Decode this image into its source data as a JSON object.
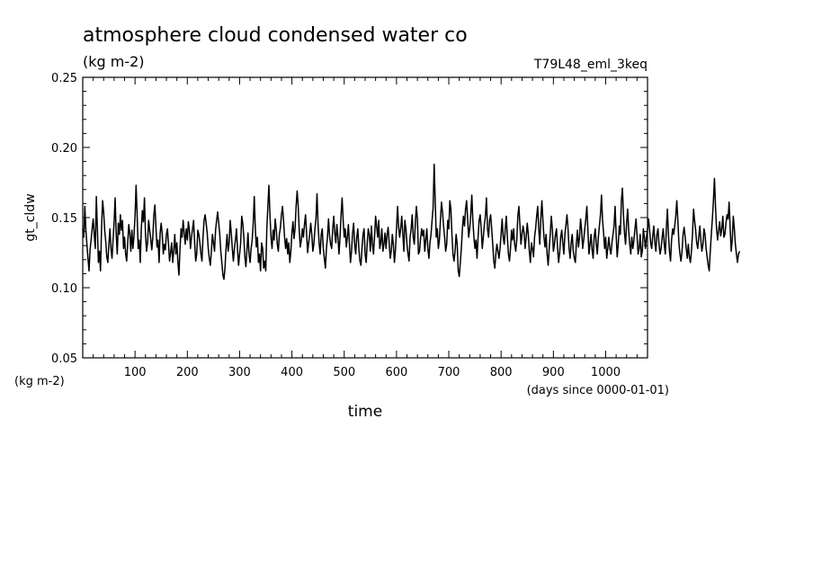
{
  "chart_data": {
    "type": "line",
    "title": "atmosphere cloud condensed water co",
    "subtitle": "(kg m-2)",
    "run_label": "T79L48_eml_3keq",
    "xlabel": "time",
    "x_unit": "(days since 0000-01-01)",
    "ylabel": "gt_cldw",
    "y_unit": "(kg m-2)",
    "xlim": [
      0,
      1080
    ],
    "ylim": [
      0.05,
      0.25
    ],
    "x_ticks": [
      100,
      200,
      300,
      400,
      500,
      600,
      700,
      800,
      900,
      1000
    ],
    "x_tick_labels": [
      "100",
      "200",
      "300",
      "400",
      "500",
      "600",
      "700",
      "800",
      "900",
      "1000"
    ],
    "y_ticks": [
      0.05,
      0.1,
      0.15,
      0.2,
      0.25
    ],
    "y_tick_labels": [
      "0.05",
      "0.10",
      "0.15",
      "0.20",
      "0.25"
    ],
    "grid": false,
    "series": [
      {
        "color": "#000000",
        "x_start": 0,
        "x_step": 2,
        "values": [
          0.142,
          0.136,
          0.158,
          0.141,
          0.131,
          0.121,
          0.112,
          0.127,
          0.134,
          0.142,
          0.149,
          0.138,
          0.128,
          0.165,
          0.142,
          0.118,
          0.126,
          0.112,
          0.143,
          0.162,
          0.154,
          0.141,
          0.133,
          0.122,
          0.118,
          0.131,
          0.142,
          0.128,
          0.121,
          0.134,
          0.147,
          0.164,
          0.138,
          0.124,
          0.146,
          0.138,
          0.152,
          0.141,
          0.148,
          0.128,
          0.136,
          0.124,
          0.119,
          0.132,
          0.145,
          0.139,
          0.126,
          0.141,
          0.128,
          0.137,
          0.151,
          0.173,
          0.152,
          0.128,
          0.134,
          0.118,
          0.142,
          0.155,
          0.147,
          0.164,
          0.138,
          0.126,
          0.132,
          0.148,
          0.141,
          0.135,
          0.127,
          0.136,
          0.152,
          0.159,
          0.143,
          0.129,
          0.134,
          0.118,
          0.139,
          0.146,
          0.138,
          0.124,
          0.131,
          0.127,
          0.138,
          0.142,
          0.131,
          0.119,
          0.125,
          0.132,
          0.118,
          0.126,
          0.138,
          0.124,
          0.132,
          0.118,
          0.109,
          0.128,
          0.142,
          0.136,
          0.148,
          0.139,
          0.131,
          0.142,
          0.134,
          0.147,
          0.141,
          0.128,
          0.136,
          0.142,
          0.148,
          0.132,
          0.119,
          0.124,
          0.141,
          0.138,
          0.132,
          0.124,
          0.119,
          0.136,
          0.148,
          0.152,
          0.146,
          0.139,
          0.128,
          0.121,
          0.116,
          0.126,
          0.138,
          0.132,
          0.126,
          0.141,
          0.148,
          0.154,
          0.146,
          0.138,
          0.126,
          0.118,
          0.109,
          0.106,
          0.114,
          0.128,
          0.138,
          0.126,
          0.132,
          0.148,
          0.139,
          0.128,
          0.119,
          0.128,
          0.134,
          0.142,
          0.127,
          0.116,
          0.124,
          0.132,
          0.151,
          0.146,
          0.136,
          0.122,
          0.115,
          0.127,
          0.139,
          0.124,
          0.118,
          0.128,
          0.134,
          0.146,
          0.165,
          0.142,
          0.129,
          0.136,
          0.118,
          0.124,
          0.112,
          0.132,
          0.128,
          0.114,
          0.119,
          0.112,
          0.142,
          0.158,
          0.173,
          0.152,
          0.136,
          0.128,
          0.141,
          0.134,
          0.149,
          0.142,
          0.131,
          0.126,
          0.138,
          0.143,
          0.152,
          0.158,
          0.148,
          0.136,
          0.128,
          0.135,
          0.124,
          0.132,
          0.118,
          0.126,
          0.139,
          0.147,
          0.135,
          0.142,
          0.158,
          0.169,
          0.158,
          0.141,
          0.129,
          0.134,
          0.142,
          0.136,
          0.145,
          0.152,
          0.139,
          0.125,
          0.132,
          0.138,
          0.146,
          0.138,
          0.126,
          0.131,
          0.142,
          0.149,
          0.167,
          0.145,
          0.132,
          0.124,
          0.138,
          0.142,
          0.128,
          0.121,
          0.114,
          0.128,
          0.136,
          0.149,
          0.137,
          0.131,
          0.128,
          0.142,
          0.151,
          0.139,
          0.132,
          0.145,
          0.136,
          0.124,
          0.136,
          0.152,
          0.164,
          0.148,
          0.136,
          0.142,
          0.129,
          0.136,
          0.145,
          0.131,
          0.118,
          0.126,
          0.139,
          0.146,
          0.131,
          0.124,
          0.136,
          0.142,
          0.128,
          0.119,
          0.116,
          0.128,
          0.138,
          0.142,
          0.124,
          0.118,
          0.132,
          0.142,
          0.138,
          0.126,
          0.144,
          0.131,
          0.124,
          0.136,
          0.151,
          0.144,
          0.136,
          0.148,
          0.128,
          0.132,
          0.142,
          0.126,
          0.131,
          0.139,
          0.128,
          0.138,
          0.143,
          0.132,
          0.121,
          0.126,
          0.138,
          0.131,
          0.118,
          0.127,
          0.142,
          0.158,
          0.144,
          0.136,
          0.142,
          0.151,
          0.139,
          0.126,
          0.148,
          0.142,
          0.131,
          0.124,
          0.119,
          0.136,
          0.142,
          0.152,
          0.136,
          0.131,
          0.146,
          0.158,
          0.149,
          0.124,
          0.126,
          0.135,
          0.142,
          0.137,
          0.141,
          0.126,
          0.134,
          0.142,
          0.128,
          0.121,
          0.132,
          0.138,
          0.148,
          0.157,
          0.188,
          0.162,
          0.136,
          0.142,
          0.128,
          0.134,
          0.148,
          0.161,
          0.154,
          0.144,
          0.136,
          0.126,
          0.131,
          0.148,
          0.142,
          0.162,
          0.156,
          0.138,
          0.124,
          0.119,
          0.126,
          0.138,
          0.131,
          0.112,
          0.108,
          0.118,
          0.128,
          0.142,
          0.151,
          0.144,
          0.156,
          0.162,
          0.149,
          0.136,
          0.142,
          0.152,
          0.166,
          0.148,
          0.136,
          0.128,
          0.134,
          0.121,
          0.136,
          0.148,
          0.152,
          0.142,
          0.128,
          0.136,
          0.145,
          0.151,
          0.164,
          0.142,
          0.136,
          0.148,
          0.152,
          0.142,
          0.131,
          0.119,
          0.114,
          0.124,
          0.131,
          0.126,
          0.121,
          0.128,
          0.138,
          0.149,
          0.136,
          0.131,
          0.142,
          0.151,
          0.136,
          0.124,
          0.119,
          0.128,
          0.141,
          0.134,
          0.142,
          0.131,
          0.126,
          0.134,
          0.151,
          0.158,
          0.145,
          0.131,
          0.138,
          0.144,
          0.139,
          0.128,
          0.136,
          0.146,
          0.138,
          0.126,
          0.118,
          0.132,
          0.128,
          0.122,
          0.136,
          0.142,
          0.151,
          0.158,
          0.142,
          0.131,
          0.149,
          0.162,
          0.148,
          0.136,
          0.129,
          0.138,
          0.124,
          0.116,
          0.128,
          0.138,
          0.151,
          0.142,
          0.126,
          0.131,
          0.138,
          0.142,
          0.128,
          0.118,
          0.125,
          0.136,
          0.141,
          0.132,
          0.124,
          0.138,
          0.145,
          0.152,
          0.142,
          0.128,
          0.121,
          0.132,
          0.138,
          0.126,
          0.121,
          0.118,
          0.132,
          0.141,
          0.129,
          0.136,
          0.149,
          0.141,
          0.128,
          0.134,
          0.142,
          0.149,
          0.158,
          0.141,
          0.124,
          0.131,
          0.138,
          0.127,
          0.121,
          0.136,
          0.142,
          0.131,
          0.124,
          0.136,
          0.144,
          0.152,
          0.166,
          0.148,
          0.139,
          0.128,
          0.136,
          0.121,
          0.128,
          0.136,
          0.128,
          0.124,
          0.132,
          0.138,
          0.144,
          0.158,
          0.138,
          0.122,
          0.131,
          0.144,
          0.138,
          0.162,
          0.171,
          0.152,
          0.139,
          0.131,
          0.146,
          0.156,
          0.141,
          0.131,
          0.124,
          0.136,
          0.128,
          0.134,
          0.142,
          0.149,
          0.137,
          0.124,
          0.128,
          0.138,
          0.122,
          0.126,
          0.142,
          0.136,
          0.128,
          0.136,
          0.142,
          0.149,
          0.141,
          0.132,
          0.128,
          0.137,
          0.144,
          0.132,
          0.126,
          0.138,
          0.142,
          0.131,
          0.124,
          0.128,
          0.136,
          0.142,
          0.131,
          0.124,
          0.142,
          0.156,
          0.138,
          0.126,
          0.119,
          0.134,
          0.142,
          0.138,
          0.144,
          0.151,
          0.162,
          0.148,
          0.132,
          0.124,
          0.119,
          0.126,
          0.138,
          0.143,
          0.136,
          0.128,
          0.121,
          0.131,
          0.122,
          0.118,
          0.126,
          0.138,
          0.156,
          0.148,
          0.141,
          0.132,
          0.128,
          0.136,
          0.144,
          0.134,
          0.126,
          0.131,
          0.142,
          0.138,
          0.128,
          0.122,
          0.116,
          0.112,
          0.126,
          0.138,
          0.149,
          0.162,
          0.178,
          0.158,
          0.142,
          0.134,
          0.141,
          0.147,
          0.137,
          0.142,
          0.151,
          0.136,
          0.138,
          0.146,
          0.152,
          0.149,
          0.161,
          0.143,
          0.126,
          0.134,
          0.151,
          0.142,
          0.131,
          0.124,
          0.118,
          0.124,
          0.126
        ]
      }
    ]
  }
}
